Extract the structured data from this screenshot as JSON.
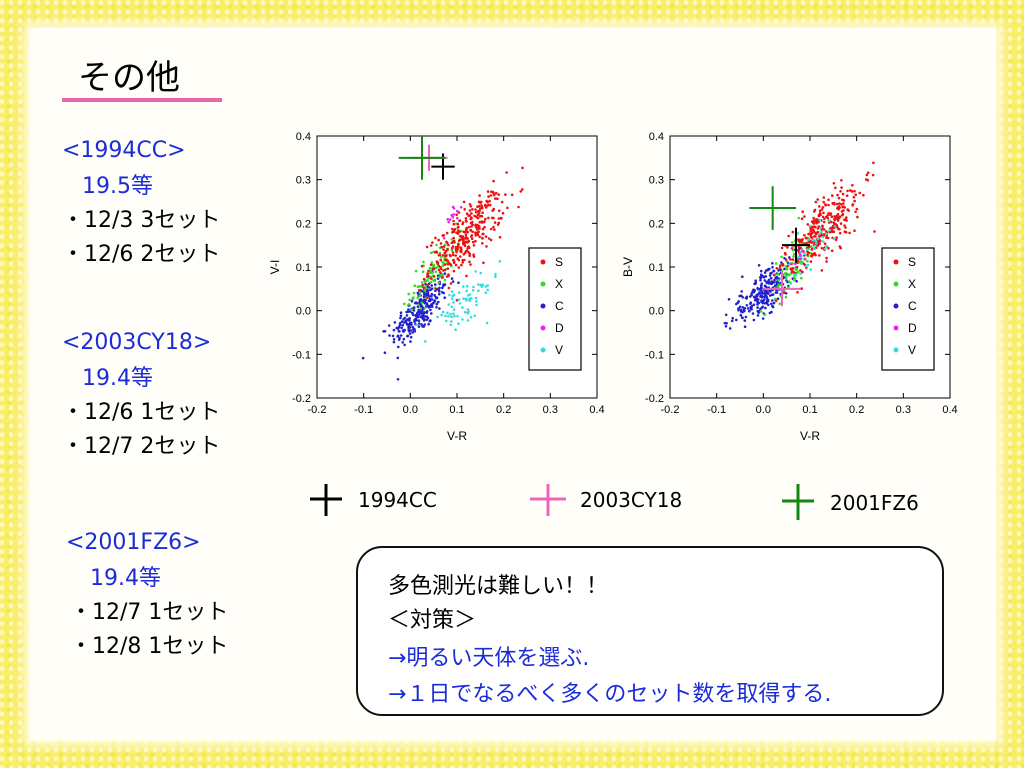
{
  "slide": {
    "title": "その他",
    "underline_color": "#ee66aa"
  },
  "objects": [
    {
      "name": "<1994CC>",
      "mag": "19.5等",
      "sessions": [
        "・12/3  3セット",
        "・12/6  2セット"
      ]
    },
    {
      "name": "<2003CY18>",
      "mag": "19.4等",
      "sessions": [
        "・12/6  1セット",
        "・12/7  2セット"
      ]
    },
    {
      "name": "<2001FZ6>",
      "mag": "19.4等",
      "sessions": [
        "・12/7  1セット",
        "・12/8  1セット"
      ]
    }
  ],
  "cross_legend": [
    {
      "label": "1994CC",
      "color": "#000000"
    },
    {
      "label": "2003CY18",
      "color": "#ee66bb"
    },
    {
      "label": "2001FZ6",
      "color": "#118811"
    }
  ],
  "note": {
    "line1": "多色測光は難しい！！",
    "line2": "＜対策＞",
    "line3": "→明るい天体を選ぶ.",
    "line4": "→１日でなるべく多くのセット数を取得する."
  },
  "chart_data": [
    {
      "type": "scatter",
      "title": "",
      "xlabel": "V-R",
      "ylabel": "V-I",
      "xlim": [
        -0.2,
        0.4
      ],
      "ylim": [
        -0.2,
        0.4
      ],
      "xticks": [
        "-0.2",
        "-0.1",
        "0.0",
        "0.1",
        "0.2",
        "0.3",
        "0.4"
      ],
      "yticks": [
        "-0.2",
        "-0.1",
        "0.0",
        "0.1",
        "0.2",
        "0.3",
        "0.4"
      ],
      "legend": {
        "placement": "right",
        "entries": [
          {
            "name": "S",
            "color": "#ee1111"
          },
          {
            "name": "X",
            "color": "#33dd22"
          },
          {
            "name": "C",
            "color": "#2222cc"
          },
          {
            "name": "D",
            "color": "#ee22ee"
          },
          {
            "name": "V",
            "color": "#33dddd"
          }
        ]
      },
      "clusters": [
        {
          "name": "C",
          "color": "#2222cc",
          "center": [
            0.02,
            0.0
          ],
          "spread": [
            0.03,
            0.04
          ],
          "n": 260
        },
        {
          "name": "X",
          "color": "#33dd22",
          "center": [
            0.05,
            0.09
          ],
          "spread": [
            0.025,
            0.04
          ],
          "n": 90
        },
        {
          "name": "S",
          "color": "#ee1111",
          "center": [
            0.12,
            0.17
          ],
          "spread": [
            0.04,
            0.05
          ],
          "n": 320
        },
        {
          "name": "V",
          "color": "#33dddd",
          "center": [
            0.11,
            0.01
          ],
          "spread": [
            0.04,
            0.04
          ],
          "n": 70
        },
        {
          "name": "D",
          "color": "#ee22ee",
          "center": [
            0.09,
            0.22
          ],
          "spread": [
            0.01,
            0.02
          ],
          "n": 12
        }
      ],
      "crosses": [
        {
          "label": "1994CC",
          "color": "#000000",
          "x": 0.07,
          "y": 0.33,
          "xerr": 0.025,
          "yerr": 0.03
        },
        {
          "label": "2003CY18",
          "color": "#ee66bb",
          "x": 0.04,
          "y": 0.35,
          "xerr": 0.04,
          "yerr": 0.03
        },
        {
          "label": "2001FZ6",
          "color": "#118811",
          "x": 0.025,
          "y": 0.35,
          "xerr": 0.05,
          "yerr": 0.05
        }
      ]
    },
    {
      "type": "scatter",
      "title": "",
      "xlabel": "V-R",
      "ylabel": "B-V",
      "xlim": [
        -0.2,
        0.4
      ],
      "ylim": [
        -0.2,
        0.4
      ],
      "xticks": [
        "-0.2",
        "-0.1",
        "0.0",
        "0.1",
        "0.2",
        "0.3",
        "0.4"
      ],
      "yticks": [
        "-0.2",
        "-0.1",
        "0.0",
        "0.1",
        "0.2",
        "0.3",
        "0.4"
      ],
      "legend": {
        "placement": "right",
        "entries": [
          {
            "name": "S",
            "color": "#ee1111"
          },
          {
            "name": "X",
            "color": "#33dd22"
          },
          {
            "name": "C",
            "color": "#2222cc"
          },
          {
            "name": "D",
            "color": "#ee22ee"
          },
          {
            "name": "V",
            "color": "#33dddd"
          }
        ]
      },
      "clusters": [
        {
          "name": "C",
          "color": "#2222cc",
          "center": [
            0.0,
            0.04
          ],
          "spread": [
            0.035,
            0.035
          ],
          "n": 260
        },
        {
          "name": "X",
          "color": "#33dd22",
          "center": [
            0.06,
            0.1
          ],
          "spread": [
            0.025,
            0.04
          ],
          "n": 90
        },
        {
          "name": "S",
          "color": "#ee1111",
          "center": [
            0.13,
            0.19
          ],
          "spread": [
            0.04,
            0.05
          ],
          "n": 320
        },
        {
          "name": "V",
          "color": "#33dddd",
          "center": [
            0.1,
            0.14
          ],
          "spread": [
            0.03,
            0.04
          ],
          "n": 40
        },
        {
          "name": "D",
          "color": "#ee22ee",
          "center": [
            0.08,
            0.12
          ],
          "spread": [
            0.01,
            0.02
          ],
          "n": 10
        }
      ],
      "crosses": [
        {
          "label": "1994CC",
          "color": "#000000",
          "x": 0.07,
          "y": 0.15,
          "xerr": 0.03,
          "yerr": 0.04
        },
        {
          "label": "2003CY18",
          "color": "#ee66bb",
          "x": 0.04,
          "y": 0.05,
          "xerr": 0.04,
          "yerr": 0.04
        },
        {
          "label": "2001FZ6",
          "color": "#118811",
          "x": 0.02,
          "y": 0.235,
          "xerr": 0.05,
          "yerr": 0.05
        }
      ]
    }
  ]
}
